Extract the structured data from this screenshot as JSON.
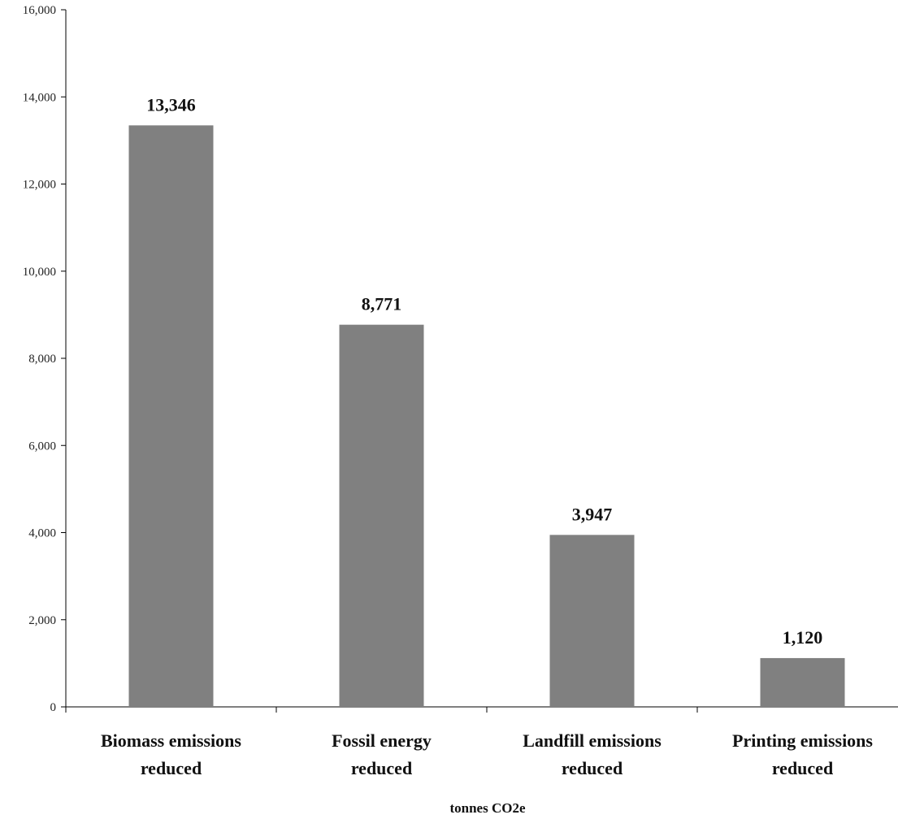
{
  "chart_data": {
    "type": "bar",
    "title": "",
    "xlabel": "tonnes CO2e",
    "ylabel": "",
    "ylim": [
      0,
      16000
    ],
    "yticks": [
      0,
      2000,
      4000,
      6000,
      8000,
      10000,
      12000,
      14000,
      16000
    ],
    "ytick_labels": [
      "0",
      "2,000",
      "4,000",
      "6,000",
      "8,000",
      "10,000",
      "12,000",
      "14,000",
      "16,000"
    ],
    "grid": false,
    "legend": "none",
    "bar_color": "#808080",
    "categories": [
      [
        "Biomass emissions",
        "reduced"
      ],
      [
        "Fossil energy",
        "reduced"
      ],
      [
        "Landfill emissions",
        "reduced"
      ],
      [
        "Printing emissions",
        "reduced"
      ]
    ],
    "values": [
      13346,
      8771,
      3947,
      1120
    ],
    "value_labels": [
      "13,346",
      "8,771",
      "3,947",
      "1,120"
    ]
  }
}
